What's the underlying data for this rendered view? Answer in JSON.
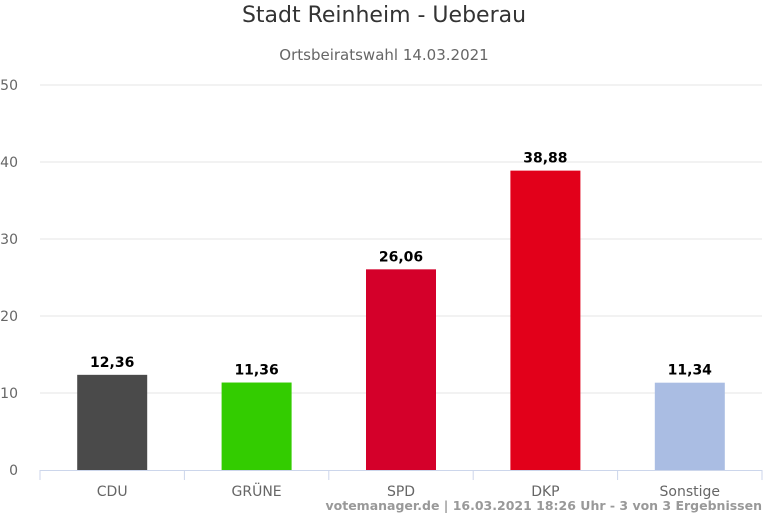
{
  "chart_data": {
    "type": "bar",
    "title": "Stadt Reinheim - Ueberau",
    "subtitle": "Ortsbeiratswahl 14.03.2021",
    "categories": [
      "CDU",
      "GRÜNE",
      "SPD",
      "DKP",
      "Sonstige"
    ],
    "values": [
      12.36,
      11.36,
      26.06,
      38.88,
      11.34
    ],
    "data_labels": [
      "12,36",
      "11,36",
      "26,06",
      "38,88",
      "11,34"
    ],
    "colors": [
      "#4a4a4a",
      "#33cc00",
      "#d4002a",
      "#e2001a",
      "#aabde3"
    ],
    "ylim": [
      0,
      50
    ],
    "yticks": [
      0,
      10,
      20,
      30,
      40,
      50
    ],
    "grid": true,
    "xlabel": "",
    "ylabel": ""
  },
  "footer": "votemanager.de | 16.03.2021 18:26 Uhr - 3 von 3 Ergebnissen"
}
